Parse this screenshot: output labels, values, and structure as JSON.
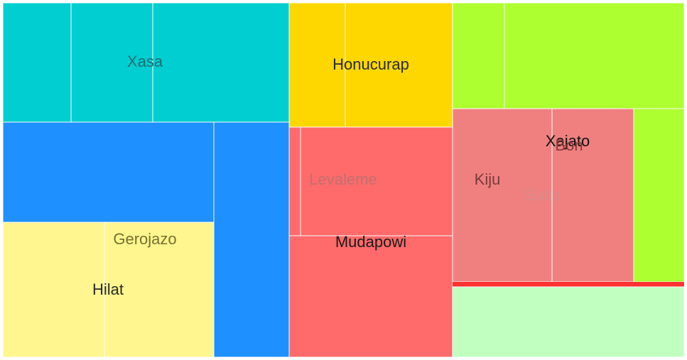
{
  "chart_data": {
    "type": "treemap",
    "title": "",
    "nodes": [
      {
        "id": "cyan-1",
        "color": "#00CED1"
      },
      {
        "id": "cyan-2",
        "color": "#00CED1"
      },
      {
        "id": "cyan-3",
        "color": "#00CED1"
      },
      {
        "id": "gold-1",
        "color": "#FFD700"
      },
      {
        "id": "gold-2",
        "color": "#FFD700"
      },
      {
        "id": "green-1",
        "color": "#ADFF2F"
      },
      {
        "id": "green-2",
        "color": "#ADFF2F"
      },
      {
        "id": "green-3",
        "color": "#ADFF2F"
      },
      {
        "id": "blue-1",
        "color": "#1E90FF"
      },
      {
        "id": "blue-2",
        "color": "#1E90FF"
      },
      {
        "id": "red-1",
        "color": "#FF6A6A"
      },
      {
        "id": "red-2",
        "color": "#FF6A6A"
      },
      {
        "id": "red-3",
        "color": "#FF6A6A"
      },
      {
        "id": "coral-1",
        "color": "#F08080"
      },
      {
        "id": "coral-2",
        "color": "#F08080"
      },
      {
        "id": "red-line",
        "color": "#FF3030"
      },
      {
        "id": "mint-1",
        "color": "#C1FFC1"
      },
      {
        "id": "yellow-1",
        "color": "#FFF68F"
      },
      {
        "id": "yellow-2",
        "color": "#FFF68F"
      }
    ],
    "labels": [
      {
        "text": "Xasa",
        "color": "#1f6e70"
      },
      {
        "text": "Honucurap",
        "color": "#2a2a2a"
      },
      {
        "text": "Levaleme",
        "color": "#c07070"
      },
      {
        "text": "Mudapowi",
        "color": "#1a1a1a"
      },
      {
        "text": "Kiju",
        "color": "#7a3a3a"
      },
      {
        "text": "Xajato",
        "color": "#111111"
      },
      {
        "text": "Bon",
        "color": "#8a3a3a"
      },
      {
        "text": "Sutip",
        "color": "#d88a8a"
      },
      {
        "text": "Gerojazo",
        "color": "#7a7030"
      },
      {
        "text": "Hilat",
        "color": "#2a2a2a"
      }
    ]
  }
}
